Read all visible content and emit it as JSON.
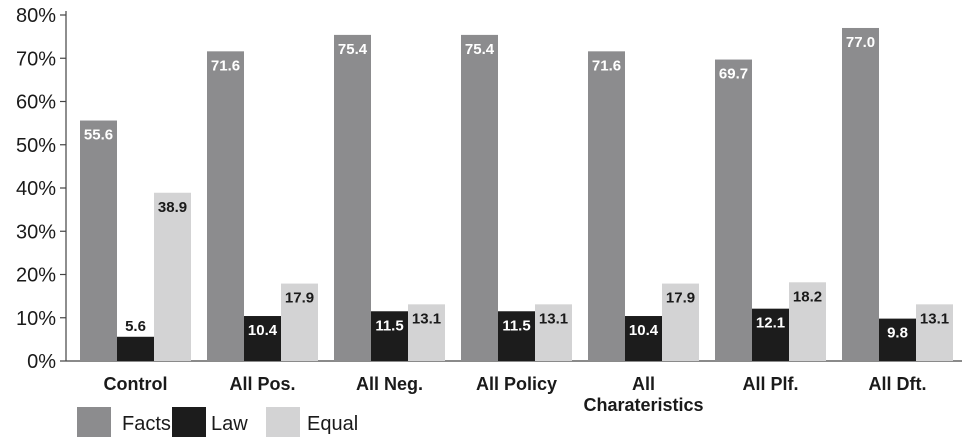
{
  "chart_data": {
    "type": "bar",
    "categories": [
      "Control",
      "All Pos.",
      "All Neg.",
      "All Policy",
      "All\nCharateristics",
      "All Plf.",
      "All Dft."
    ],
    "series": [
      {
        "name": "Facts",
        "color": "#8c8c8e",
        "values": [
          55.6,
          71.6,
          75.4,
          75.4,
          71.6,
          69.7,
          77.0
        ],
        "labels": [
          "55.6",
          "71.6",
          "75.4",
          "75.4",
          "71.6",
          "69.7",
          "77.0"
        ]
      },
      {
        "name": "Law",
        "color": "#1c1c1c",
        "values": [
          5.6,
          10.4,
          11.5,
          11.5,
          10.4,
          12.1,
          9.8
        ],
        "labels": [
          "5.6",
          "10.4",
          "11.5",
          "11.5",
          "10.4",
          "12.1",
          "9.8"
        ]
      },
      {
        "name": "Equal",
        "color": "#d3d3d4",
        "values": [
          38.9,
          17.9,
          13.1,
          13.1,
          17.9,
          18.2,
          13.1
        ],
        "labels": [
          "38.9",
          "17.9",
          "13.1",
          "13.1",
          "17.9",
          "18.2",
          "13.1"
        ]
      }
    ],
    "y_ticks": [
      "0%",
      "10%",
      "20%",
      "30%",
      "40%",
      "50%",
      "60%",
      "70%",
      "80%"
    ],
    "ylim": [
      0,
      80
    ],
    "grid": false,
    "legend_position": "bottom-left"
  }
}
